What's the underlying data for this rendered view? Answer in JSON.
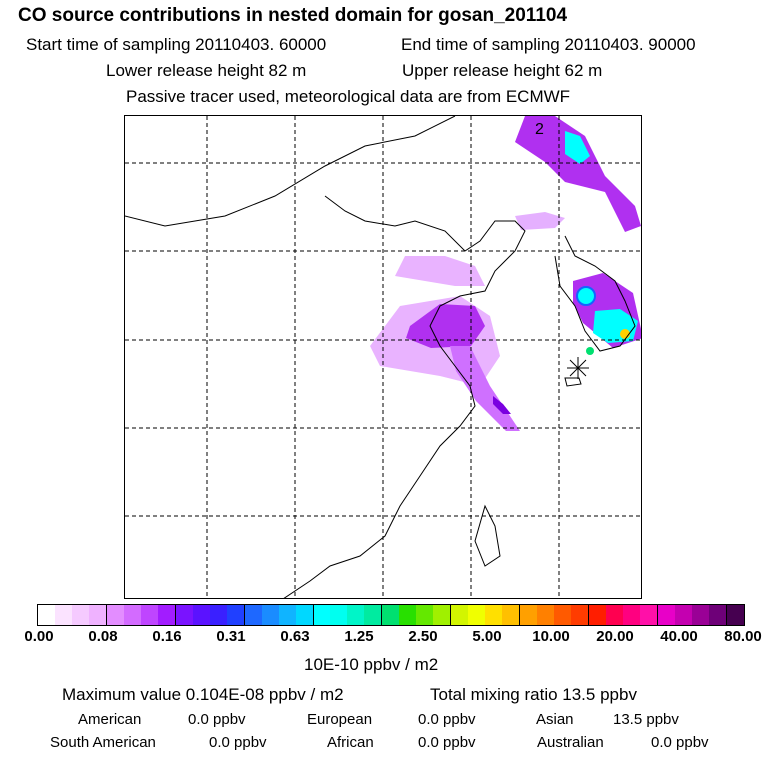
{
  "header": {
    "title": "CO  source contributions in nested domain for gosan_201104",
    "start_label": "Start time of sampling 20110403. 60000",
    "end_label": "End time of sampling 20110403. 90000",
    "lower_label": "Lower release height   82 m",
    "upper_label": "Upper release height   62 m",
    "note": "Passive tracer used, meteorological data are from ECMWF"
  },
  "map": {
    "contour_label": "2",
    "station_marker": "gosan-station",
    "colors": {
      "light_purple": "#e9b3ff",
      "purple": "#b030f0",
      "violet": "#7a00e0",
      "cyan": "#00ffff",
      "blue": "#1464ff",
      "yellow": "#ffd000",
      "green": "#00e070"
    }
  },
  "colorbar": {
    "colors": [
      "#ffffff",
      "#fbe3ff",
      "#f5caff",
      "#efb2ff",
      "#e38dff",
      "#d36bff",
      "#bf45ff",
      "#a21cff",
      "#7a13ff",
      "#5b12ff",
      "#3a20ff",
      "#2040ff",
      "#1e68ff",
      "#1a8cff",
      "#10b4ff",
      "#00d8ff",
      "#00ffff",
      "#00fff0",
      "#00f5c8",
      "#00eba0",
      "#00e070",
      "#28e000",
      "#64e800",
      "#a0f000",
      "#d2f500",
      "#f0ff00",
      "#ffe000",
      "#ffc000",
      "#ffa000",
      "#ff8000",
      "#ff5a00",
      "#ff3c00",
      "#ff1e00",
      "#ff0050",
      "#ff0080",
      "#ff10a8",
      "#e800c8",
      "#c400b0",
      "#9a0096",
      "#6e0078",
      "#460050"
    ],
    "ticks": [
      "0.00",
      "0.08",
      "0.16",
      "0.31",
      "0.63",
      "1.25",
      "2.50",
      "5.00",
      "10.00",
      "20.00",
      "40.00",
      "80.00"
    ],
    "unit": "10E-10 ppbv / m2"
  },
  "stats": {
    "maximum": "Maximum value  0.104E-08 ppbv / m2",
    "total_mixing": "Total mixing ratio       13.5 ppbv",
    "american_label": "American",
    "american_value": "0.0 ppbv",
    "european_label": "European",
    "european_value": "0.0 ppbv",
    "asian_label": "Asian",
    "asian_value": "13.5 ppbv",
    "south_american_label": "South American",
    "south_american_value": "0.0 ppbv",
    "african_label": "African",
    "african_value": "0.0 ppbv",
    "australian_label": "Australian",
    "australian_value": "0.0 ppbv"
  }
}
